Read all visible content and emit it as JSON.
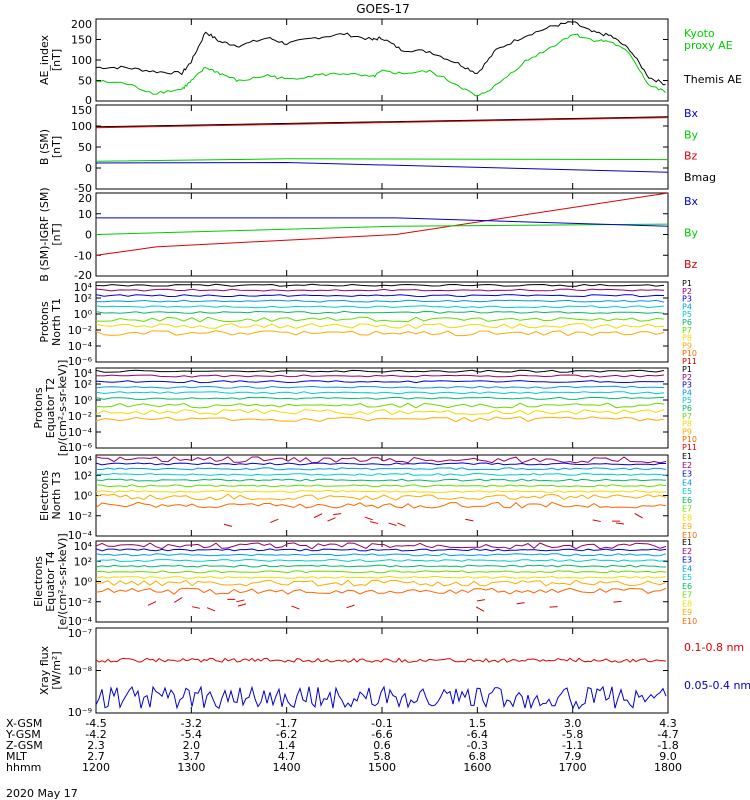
{
  "title": "GOES-17",
  "date": "2020 May 17",
  "colors": {
    "black": "#000000",
    "red": "#dd0000",
    "green": "#00cc00",
    "blue": "#0000cc",
    "kyoto": "#00dd00",
    "ch": [
      "#000000",
      "#990066",
      "#0000dd",
      "#0099ee",
      "#00cccc",
      "#00bb66",
      "#66dd00",
      "#eedd00",
      "#ffaa00",
      "#ff6600",
      "#dd0000"
    ]
  },
  "chart_data": {
    "type": "line",
    "x_range_hours": [
      12,
      18
    ],
    "panels": [
      {
        "id": "ae",
        "ylabel": [
          "AE_index",
          "[nT]"
        ],
        "ticks": [
          "200",
          "150",
          "100",
          "50",
          "0"
        ],
        "legend": [
          {
            "text": "Kyoto",
            "color": "green"
          },
          {
            "text": "proxy AE",
            "color": "green"
          },
          {
            "text": "Themis AE",
            "color": "black"
          }
        ],
        "series": [
          {
            "name": "Themis AE",
            "color": "black",
            "x": [
              12.0,
              12.3,
              12.6,
              12.9,
              13.0,
              13.15,
              13.3,
              13.5,
              13.8,
              14.0,
              14.3,
              14.6,
              14.9,
              15.0,
              15.2,
              15.5,
              15.8,
              16.0,
              16.2,
              16.5,
              16.8,
              17.0,
              17.2,
              17.4,
              17.6,
              17.8,
              18.0
            ],
            "y": [
              85,
              85,
              75,
              70,
              100,
              175,
              150,
              140,
              160,
              145,
              160,
              170,
              155,
              160,
              130,
              125,
              95,
              70,
              130,
              165,
              190,
              200,
              175,
              165,
              130,
              60,
              40
            ]
          },
          {
            "name": "Kyoto proxy AE",
            "color": "green",
            "x": [
              12.0,
              12.3,
              12.6,
              12.9,
              13.0,
              13.15,
              13.3,
              13.5,
              13.8,
              14.0,
              14.3,
              14.6,
              14.9,
              15.0,
              15.2,
              15.5,
              15.8,
              16.0,
              16.2,
              16.5,
              16.8,
              17.0,
              17.2,
              17.4,
              17.6,
              17.8,
              18.0
            ],
            "y": [
              50,
              45,
              20,
              30,
              50,
              85,
              70,
              50,
              65,
              55,
              65,
              70,
              60,
              75,
              70,
              75,
              40,
              10,
              40,
              100,
              140,
              170,
              155,
              150,
              120,
              40,
              20
            ]
          }
        ]
      },
      {
        "id": "bsm",
        "ylabel": [
          "B (SM)",
          "[nT]"
        ],
        "ticks": [
          "150",
          "100",
          "50",
          "0",
          "-50"
        ],
        "legend": [
          {
            "text": "Bx",
            "color": "blue"
          },
          {
            "text": "By",
            "color": "green"
          },
          {
            "text": "Bz",
            "color": "red"
          },
          {
            "text": "Bmag",
            "color": "black"
          }
        ]
      },
      {
        "id": "bigrf",
        "ylabel": [
          "B (SM)-IGRF (SM)",
          "[nT]"
        ],
        "ticks": [
          "20",
          "10",
          "0",
          "-10",
          "-20"
        ],
        "legend": [
          {
            "text": "Bx",
            "color": "blue"
          },
          {
            "text": "By",
            "color": "green"
          },
          {
            "text": "Bz",
            "color": "red"
          }
        ]
      },
      {
        "id": "pt1",
        "ylabel": [
          "Protons",
          "North T1"
        ],
        "ticks": [
          "10⁴",
          "10²",
          "10⁰",
          "10⁻²",
          "10⁻⁴",
          "10⁻⁶"
        ],
        "legend": [
          "P1",
          "P2",
          "P3",
          "P4",
          "P5",
          "P6",
          "P7",
          "P8",
          "P9",
          "P10",
          "P11"
        ]
      },
      {
        "id": "pt2",
        "ylabel": [
          "Protons",
          "Equator T2",
          "[p/(cm²-s-sr-keV)]"
        ],
        "ticks": [
          "10⁴",
          "10²",
          "10⁰",
          "10⁻²",
          "10⁻⁴",
          "10⁻⁶"
        ],
        "legend": [
          "P1",
          "P2",
          "P3",
          "P4",
          "P5",
          "P6",
          "P7",
          "P8",
          "P9",
          "P10",
          "P11"
        ]
      },
      {
        "id": "et3",
        "ylabel": [
          "Electrons",
          "North T3"
        ],
        "ticks": [
          "10⁴",
          "10²",
          "10⁰",
          "10⁻²",
          "10⁻⁴"
        ],
        "legend": [
          "E1",
          "E2",
          "E3",
          "E4",
          "E5",
          "E6",
          "E7",
          "E8",
          "E9",
          "E10"
        ]
      },
      {
        "id": "et4",
        "ylabel": [
          "Electrons",
          "Equator T4",
          "[e/(cm²-s-sr-keV)]"
        ],
        "ticks": [
          "10⁴",
          "10²",
          "10⁰",
          "10⁻²",
          "10⁻⁴"
        ],
        "legend": [
          "E1",
          "E2",
          "E3",
          "E4",
          "E5",
          "E6",
          "E7",
          "E8",
          "E9",
          "E10"
        ]
      },
      {
        "id": "xray",
        "ylabel": [
          "Xray flux",
          "[W/m²]"
        ],
        "ticks": [
          "10⁻⁷",
          "10⁻⁸",
          "10⁻⁹"
        ],
        "legend": [
          {
            "text": "0.1-0.8 nm",
            "color": "red"
          },
          {
            "text": "0.05-0.4 nm",
            "color": "blue"
          }
        ]
      }
    ],
    "orbit_table": {
      "row_labels": [
        "X-GSM",
        "Y-GSM",
        "Z-GSM",
        "MLT",
        "hhmm"
      ],
      "columns": [
        [
          "-4.5",
          "-4.2",
          "2.3",
          "2.7",
          "1200"
        ],
        [
          "-3.2",
          "-5.4",
          "2.0",
          "3.7",
          "1300"
        ],
        [
          "-1.7",
          "-6.2",
          "1.4",
          "4.7",
          "1400"
        ],
        [
          "-0.1",
          "-6.6",
          "0.6",
          "5.8",
          "1500"
        ],
        [
          "1.5",
          "-6.4",
          "-0.3",
          "6.8",
          "1600"
        ],
        [
          "3.0",
          "-5.8",
          "-1.1",
          "7.9",
          "1700"
        ],
        [
          "4.3",
          "-4.7",
          "-1.8",
          "9.0",
          "1800"
        ]
      ]
    }
  }
}
